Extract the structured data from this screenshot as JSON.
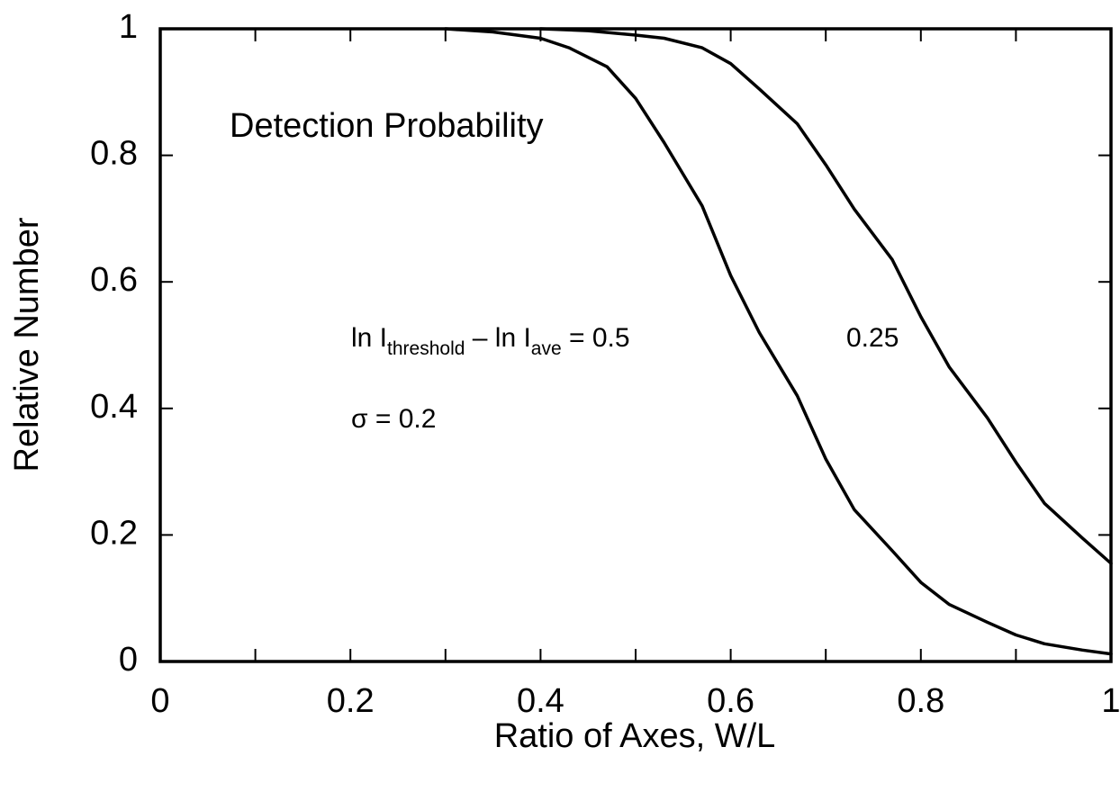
{
  "chart_data": {
    "type": "line",
    "title": "",
    "xlabel": "Ratio of Axes, W/L",
    "ylabel": "Relative Number",
    "xlim": [
      0,
      1
    ],
    "ylim": [
      0,
      1
    ],
    "x_ticks": [
      "0",
      "0.2",
      "0.4",
      "0.6",
      "0.8",
      "1"
    ],
    "y_ticks": [
      "0",
      "0.2",
      "0.4",
      "0.6",
      "0.8",
      "1"
    ],
    "grid": false,
    "legend": "none",
    "line_color": "#000000",
    "series": [
      {
        "label": "0.5",
        "x": [
          0.3,
          0.35,
          0.4,
          0.43,
          0.47,
          0.5,
          0.53,
          0.57,
          0.6,
          0.63,
          0.67,
          0.7,
          0.73,
          0.77,
          0.8,
          0.83,
          0.87,
          0.9,
          0.93,
          0.97,
          1.0
        ],
        "y": [
          1.0,
          0.995,
          0.985,
          0.97,
          0.94,
          0.89,
          0.82,
          0.72,
          0.61,
          0.52,
          0.42,
          0.32,
          0.24,
          0.175,
          0.125,
          0.09,
          0.062,
          0.042,
          0.028,
          0.018,
          0.012
        ]
      },
      {
        "label": "0.25",
        "x": [
          0.4,
          0.45,
          0.5,
          0.53,
          0.57,
          0.6,
          0.63,
          0.67,
          0.7,
          0.73,
          0.77,
          0.8,
          0.83,
          0.87,
          0.9,
          0.93,
          0.97,
          1.0
        ],
        "y": [
          1.0,
          0.997,
          0.99,
          0.985,
          0.97,
          0.945,
          0.905,
          0.85,
          0.785,
          0.715,
          0.635,
          0.545,
          0.465,
          0.385,
          0.315,
          0.25,
          0.195,
          0.155
        ]
      }
    ],
    "annotations": {
      "title_text": "Detection Probability",
      "eq_prefix": "ln I",
      "eq_sub1": "threshold",
      "eq_mid": " – ln I",
      "eq_sub2": "ave",
      "eq_suffix": " = 0.5",
      "label_025": "0.25",
      "sigma": "σ = 0.2"
    }
  }
}
